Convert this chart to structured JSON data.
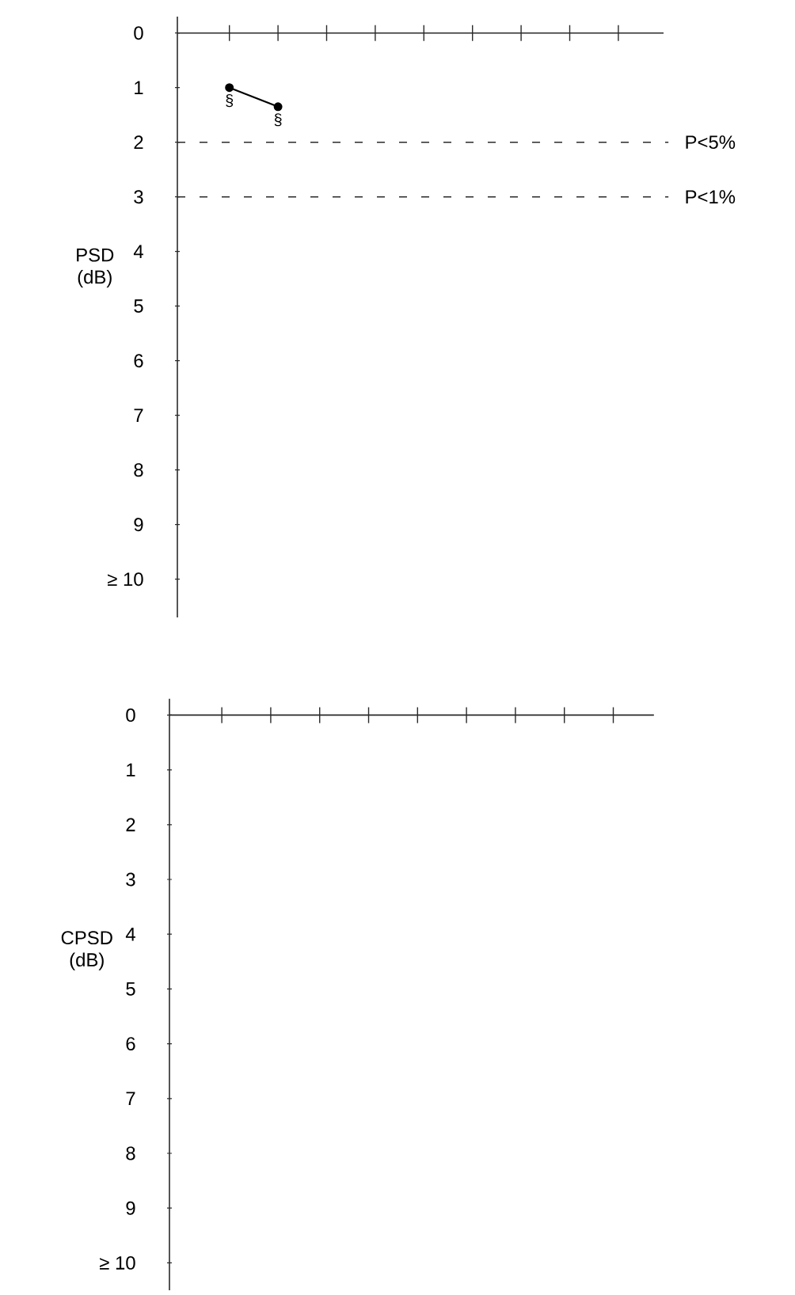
{
  "chart_data": [
    {
      "type": "line",
      "ylabel": "PSD (dB)",
      "categories": [
        null,
        null,
        null,
        null,
        null,
        null,
        null,
        null,
        null
      ],
      "values": [
        1.0,
        1.35,
        null,
        null,
        null,
        null,
        null,
        null,
        null
      ],
      "value_labels": [
        "§",
        "§",
        null,
        null,
        null,
        null,
        null,
        null,
        null
      ],
      "color": "#000000",
      "marker": "circle",
      "line_style": "solid",
      "ylim": [
        10.7,
        -0.3
      ],
      "yticks": [
        0,
        1,
        2,
        3,
        4,
        5,
        6,
        7,
        8,
        9,
        {
          "value": 10,
          "label": "≥ 10"
        }
      ],
      "tick_labels": "y",
      "ref_lines": [
        {
          "axis": "y",
          "value": 2,
          "label": "P<5%",
          "line_style": "dashed"
        },
        {
          "axis": "y",
          "value": 3,
          "label": "P<1%",
          "line_style": "dashed"
        }
      ]
    },
    {
      "type": "line",
      "ylabel": "CPSD (dB)",
      "categories": [
        null,
        null,
        null,
        null,
        null,
        null,
        null,
        null,
        null
      ],
      "values": [
        null,
        null,
        null,
        null,
        null,
        null,
        null,
        null,
        null
      ],
      "ylim": [
        10.5,
        -0.3
      ],
      "yticks": [
        0,
        1,
        2,
        3,
        4,
        5,
        6,
        7,
        8,
        9,
        {
          "value": 10,
          "label": "≥ 10"
        }
      ],
      "tick_labels": "y"
    }
  ]
}
